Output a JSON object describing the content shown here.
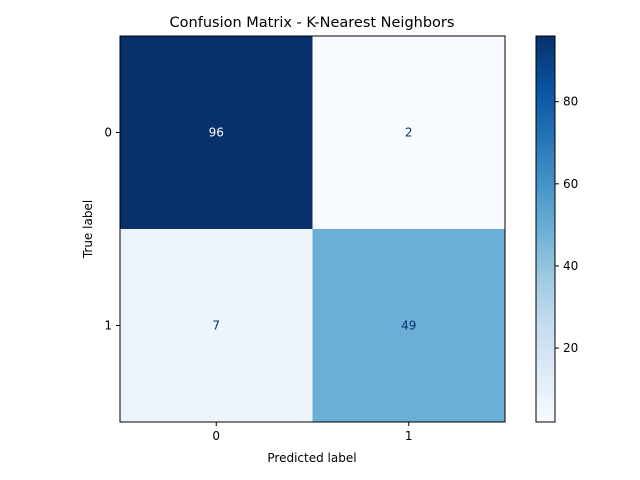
{
  "chart_data": {
    "type": "heatmap",
    "title": "Confusion Matrix - K-Nearest Neighbors",
    "xlabel": "Predicted label",
    "ylabel": "True label",
    "x_categories": [
      "0",
      "1"
    ],
    "y_categories": [
      "0",
      "1"
    ],
    "values": [
      [
        96,
        2
      ],
      [
        7,
        49
      ]
    ],
    "colormap": "Blues",
    "colorbar": {
      "vmin": 2,
      "vmax": 96,
      "ticks": [
        20,
        40,
        60,
        80
      ],
      "tick_labels": [
        "20",
        "40",
        "60",
        "80"
      ]
    },
    "grid": false
  }
}
